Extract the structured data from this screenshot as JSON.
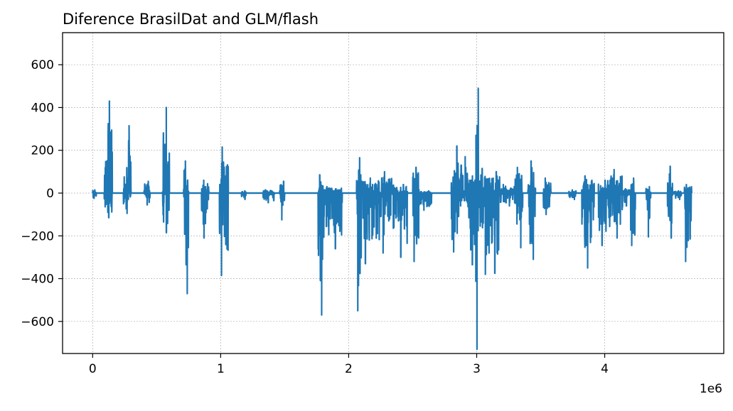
{
  "chart_data": {
    "type": "line",
    "title": "Diference BrasilDat and GLM/flash",
    "xlabel": "",
    "ylabel": "",
    "x_offset_label": "1e6",
    "x_scale": 1000000,
    "xlim": [
      -0.235,
      4.93
    ],
    "ylim": [
      -750,
      750
    ],
    "xticks": [
      0,
      1,
      2,
      3,
      4
    ],
    "xtick_labels": [
      "0",
      "1",
      "2",
      "3",
      "4"
    ],
    "yticks": [
      -600,
      -400,
      -200,
      0,
      200,
      400,
      600
    ],
    "ytick_labels": [
      "−600",
      "−400",
      "−200",
      "0",
      "200",
      "400",
      "600"
    ],
    "grid": true,
    "legend": "none",
    "series_color": "#1f77b4",
    "bursts": [
      {
        "x": 0.0,
        "x2": 0.03,
        "hi": 15,
        "lo": -25
      },
      {
        "x": 0.09,
        "x2": 0.155,
        "hi": 430,
        "lo": -115
      },
      {
        "x": 0.24,
        "x2": 0.3,
        "hi": 315,
        "lo": -95
      },
      {
        "x": 0.4,
        "x2": 0.45,
        "hi": 55,
        "lo": -55
      },
      {
        "x": 0.545,
        "x2": 0.6,
        "hi": 400,
        "lo": -185
      },
      {
        "x": 0.71,
        "x2": 0.75,
        "hi": 150,
        "lo": -470
      },
      {
        "x": 0.85,
        "x2": 0.91,
        "hi": 60,
        "lo": -210
      },
      {
        "x": 0.99,
        "x2": 1.06,
        "hi": 215,
        "lo": -385
      },
      {
        "x": 1.16,
        "x2": 1.2,
        "hi": 10,
        "lo": -30
      },
      {
        "x": 1.33,
        "x2": 1.42,
        "hi": 15,
        "lo": -45
      },
      {
        "x": 1.46,
        "x2": 1.5,
        "hi": 55,
        "lo": -125
      },
      {
        "x": 1.76,
        "x2": 1.8,
        "hi": 85,
        "lo": -570
      },
      {
        "x": 1.8,
        "x2": 1.95,
        "hi": 30,
        "lo": -260
      },
      {
        "x": 2.06,
        "x2": 2.1,
        "hi": 165,
        "lo": -550
      },
      {
        "x": 2.1,
        "x2": 2.23,
        "hi": 70,
        "lo": -330
      },
      {
        "x": 2.23,
        "x2": 2.36,
        "hi": 100,
        "lo": -280
      },
      {
        "x": 2.36,
        "x2": 2.46,
        "hi": 40,
        "lo": -300
      },
      {
        "x": 2.5,
        "x2": 2.55,
        "hi": 120,
        "lo": -320
      },
      {
        "x": 2.55,
        "x2": 2.65,
        "hi": 10,
        "lo": -80
      },
      {
        "x": 2.8,
        "x2": 2.86,
        "hi": 220,
        "lo": -275
      },
      {
        "x": 2.86,
        "x2": 2.93,
        "hi": 170,
        "lo": -60
      },
      {
        "x": 2.93,
        "x2": 3.0,
        "hi": 80,
        "lo": -335
      },
      {
        "x": 2.99,
        "x2": 3.02,
        "hi": 490,
        "lo": -730
      },
      {
        "x": 3.02,
        "x2": 3.09,
        "hi": 115,
        "lo": -380
      },
      {
        "x": 3.09,
        "x2": 3.18,
        "hi": 100,
        "lo": -375
      },
      {
        "x": 3.18,
        "x2": 3.3,
        "hi": 40,
        "lo": -60
      },
      {
        "x": 3.3,
        "x2": 3.36,
        "hi": 120,
        "lo": -255
      },
      {
        "x": 3.4,
        "x2": 3.46,
        "hi": 150,
        "lo": -310
      },
      {
        "x": 3.52,
        "x2": 3.58,
        "hi": 70,
        "lo": -100
      },
      {
        "x": 3.72,
        "x2": 3.78,
        "hi": 15,
        "lo": -30
      },
      {
        "x": 3.82,
        "x2": 3.92,
        "hi": 80,
        "lo": -350
      },
      {
        "x": 3.95,
        "x2": 4.02,
        "hi": 60,
        "lo": -245
      },
      {
        "x": 4.02,
        "x2": 4.14,
        "hi": 110,
        "lo": -210
      },
      {
        "x": 4.14,
        "x2": 4.2,
        "hi": 20,
        "lo": -60
      },
      {
        "x": 4.2,
        "x2": 4.24,
        "hi": 70,
        "lo": -245
      },
      {
        "x": 4.32,
        "x2": 4.36,
        "hi": 30,
        "lo": -205
      },
      {
        "x": 4.49,
        "x2": 4.53,
        "hi": 125,
        "lo": -210
      },
      {
        "x": 4.53,
        "x2": 4.6,
        "hi": 10,
        "lo": -30
      },
      {
        "x": 4.62,
        "x2": 4.68,
        "hi": 40,
        "lo": -320
      }
    ]
  }
}
